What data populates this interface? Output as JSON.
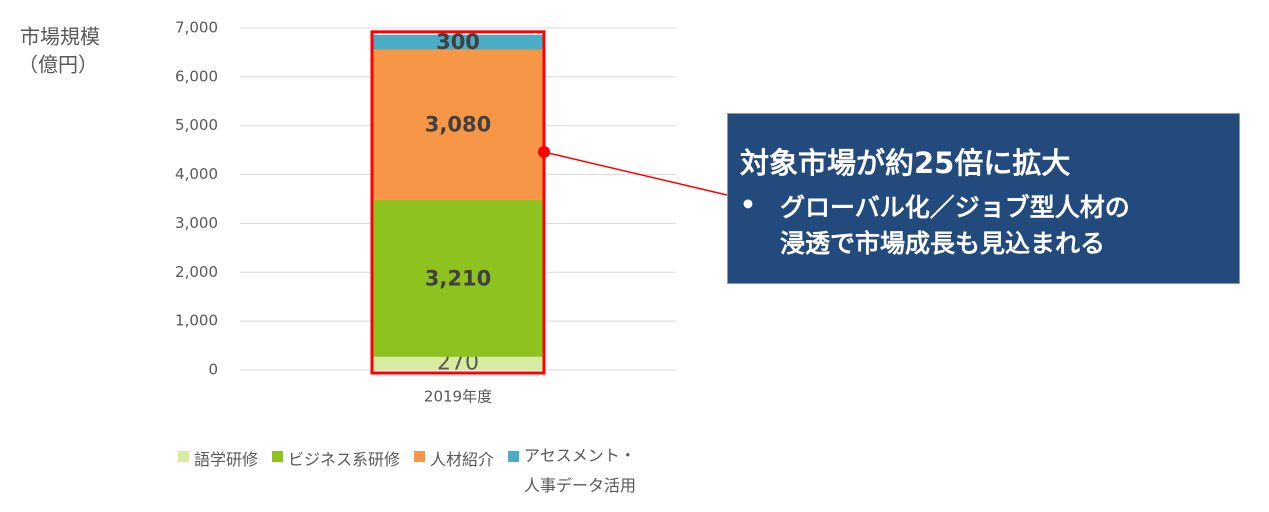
{
  "chart_data": {
    "type": "stacked_bar",
    "y_label_lines": [
      "市場規模",
      "（億円）"
    ],
    "categories": [
      "2019年度"
    ],
    "series": [
      {
        "name": "語学研修",
        "color": "#d7eca0",
        "values": [
          270
        ]
      },
      {
        "name": "ビジネス系研修",
        "color": "#8dc21f",
        "values": [
          3210
        ],
        "value_labels": [
          "3,210"
        ]
      },
      {
        "name": "人材紹介",
        "color": "#f79646",
        "values": [
          3080
        ],
        "value_labels": [
          "3,080"
        ]
      },
      {
        "name": "アセスメント・人事データ活用",
        "color": "#4bacc6",
        "values": [
          300
        ]
      }
    ],
    "ylim": [
      0,
      7000
    ],
    "yticks": [
      0,
      {
        "value": 1000,
        "label": "1,000"
      },
      {
        "value": 2000,
        "label": "2,000"
      },
      {
        "value": 3000,
        "label": "3,000"
      },
      {
        "value": 4000,
        "label": "4,000"
      },
      {
        "value": 5000,
        "label": "5,000"
      },
      {
        "value": 6000,
        "label": "6,000"
      },
      {
        "value": 7000,
        "label": "7,000"
      }
    ],
    "grid": true,
    "legend": "bottom",
    "highlight_color": "#ff0000",
    "callout": {
      "title": "対象市場が約25倍に拡大",
      "bullet": "•",
      "bullet_lines": [
        "グローバル化／ジョブ型人材の",
        "浸透で市場成長も見込まれる"
      ]
    }
  }
}
